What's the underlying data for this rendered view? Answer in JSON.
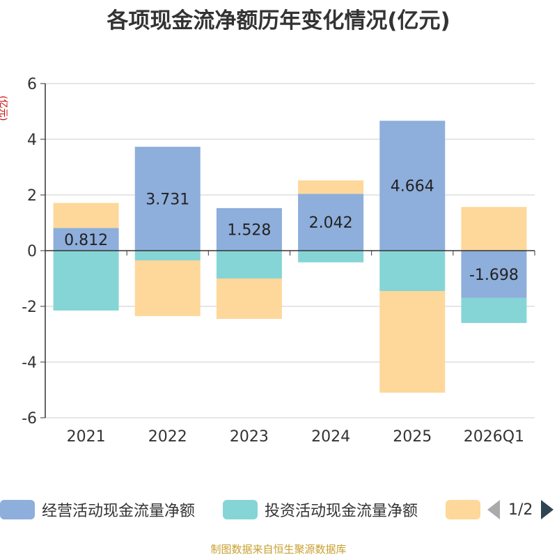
{
  "chart_data": {
    "type": "bar",
    "stacked": true,
    "title": "各项现金流净额历年变化情况(亿元)",
    "ylabel": "(亿元)",
    "ylim": [
      -6,
      6
    ],
    "yticks": [
      -6,
      -4,
      -2,
      0,
      2,
      4,
      6
    ],
    "categories": [
      "2021",
      "2022",
      "2023",
      "2024",
      "2025",
      "2026Q1"
    ],
    "series": [
      {
        "name": "经营活动现金流量净额",
        "color": "#8eaedb",
        "values": [
          0.812,
          3.731,
          1.528,
          2.042,
          4.664,
          -1.698
        ],
        "labels": [
          "0.812",
          "3.731",
          "1.528",
          "2.042",
          "4.664",
          "-1.698"
        ]
      },
      {
        "name": "投资活动现金流量净额",
        "color": "#86d5d6",
        "values": [
          -2.15,
          -0.35,
          -1.0,
          -0.42,
          -1.45,
          -0.9
        ]
      },
      {
        "name": "",
        "color": "#fdd89a",
        "values": [
          0.9,
          -2.0,
          -1.45,
          0.48,
          -3.65,
          1.57
        ]
      }
    ],
    "legend_position": "bottom"
  },
  "legend": {
    "page": "1/2"
  },
  "source": "制图数据来自恒生聚源数据库"
}
